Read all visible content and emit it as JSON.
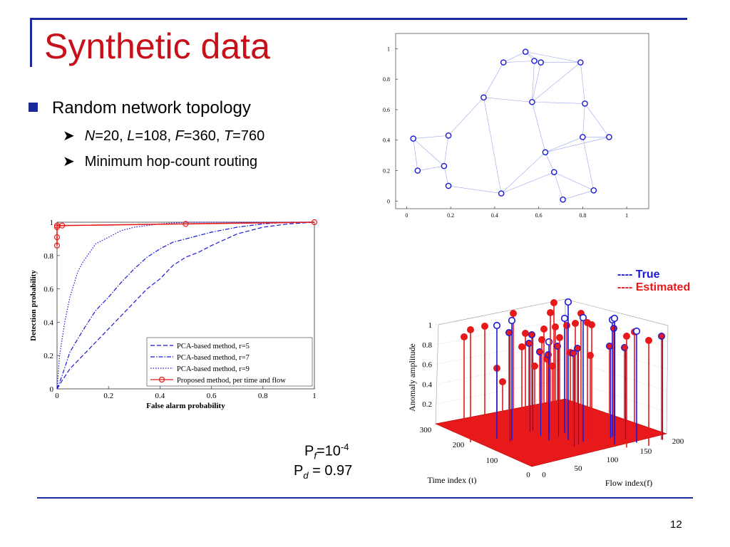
{
  "slide": {
    "title": "Synthetic data",
    "bullet_main": "Random network topology",
    "sub1": {
      "N_sym": "N",
      "N_val": "=20, ",
      "L_sym": "L",
      "L_val": "=108, ",
      "F_sym": "F",
      "F_val": "=360, ",
      "T_sym": "T",
      "T_val": "=760"
    },
    "sub2": "Minimum hop-count routing",
    "pf": {
      "base": "P",
      "sub": "f",
      "eq": "=10",
      "sup": "-4"
    },
    "pd": {
      "base": "P",
      "sub": "d",
      "eq": " = 0.97"
    },
    "page_number": "12",
    "legend3d": {
      "true_label": "---- True",
      "est_label": "----  Estimated"
    },
    "colors": {
      "title": "#c8101a",
      "bullet": "#1a2a9c",
      "rule": "#1a2a9c",
      "true": "#1a1ad6",
      "estimated": "#e8191a"
    }
  },
  "chart_data": [
    {
      "type": "scatter",
      "title": "",
      "xlabel": "",
      "ylabel": "",
      "xlim": [
        -0.05,
        1.1
      ],
      "ylim": [
        -0.05,
        1.1
      ],
      "xticks": [
        "0",
        "0.2",
        "0.4",
        "0.6",
        "0.8",
        "1"
      ],
      "yticks": [
        "0",
        "0.2",
        "0.4",
        "0.6",
        "0.8",
        "1"
      ],
      "nodes": [
        [
          0.03,
          0.41
        ],
        [
          0.05,
          0.2
        ],
        [
          0.19,
          0.43
        ],
        [
          0.17,
          0.23
        ],
        [
          0.19,
          0.1
        ],
        [
          0.35,
          0.68
        ],
        [
          0.43,
          0.05
        ],
        [
          0.44,
          0.91
        ],
        [
          0.54,
          0.98
        ],
        [
          0.58,
          0.92
        ],
        [
          0.61,
          0.91
        ],
        [
          0.57,
          0.65
        ],
        [
          0.63,
          0.32
        ],
        [
          0.67,
          0.19
        ],
        [
          0.71,
          0.01
        ],
        [
          0.79,
          0.91
        ],
        [
          0.8,
          0.42
        ],
        [
          0.81,
          0.64
        ],
        [
          0.85,
          0.07
        ],
        [
          0.92,
          0.42
        ]
      ],
      "edges": [
        [
          0,
          1
        ],
        [
          0,
          2
        ],
        [
          0,
          3
        ],
        [
          1,
          3
        ],
        [
          2,
          3
        ],
        [
          3,
          4
        ],
        [
          2,
          5
        ],
        [
          5,
          7
        ],
        [
          5,
          11
        ],
        [
          5,
          6
        ],
        [
          7,
          8
        ],
        [
          7,
          9
        ],
        [
          8,
          9
        ],
        [
          8,
          10
        ],
        [
          9,
          10
        ],
        [
          9,
          11
        ],
        [
          10,
          11
        ],
        [
          8,
          15
        ],
        [
          10,
          15
        ],
        [
          15,
          11
        ],
        [
          11,
          17
        ],
        [
          15,
          17
        ],
        [
          17,
          16
        ],
        [
          17,
          19
        ],
        [
          16,
          19
        ],
        [
          11,
          12
        ],
        [
          12,
          13
        ],
        [
          12,
          16
        ],
        [
          13,
          14
        ],
        [
          13,
          18
        ],
        [
          16,
          18
        ],
        [
          14,
          18
        ],
        [
          6,
          13
        ],
        [
          4,
          6
        ],
        [
          12,
          19
        ],
        [
          6,
          12
        ]
      ]
    },
    {
      "type": "line",
      "title": "",
      "xlabel": "False alarm probability",
      "ylabel": "Detection probability",
      "xlim": [
        0,
        1
      ],
      "ylim": [
        0,
        1
      ],
      "xticks": [
        "0",
        "0.2",
        "0.4",
        "0.6",
        "0.8",
        "1"
      ],
      "yticks": [
        "0",
        "0.2",
        "0.4",
        "0.6",
        "0.8",
        "1"
      ],
      "legend_position": "bottom-right",
      "series": [
        {
          "name": "PCA-based method, r=5",
          "style": "dashed",
          "color": "#1a1ad6",
          "x": [
            0,
            0.02,
            0.05,
            0.1,
            0.15,
            0.2,
            0.25,
            0.3,
            0.35,
            0.4,
            0.45,
            0.5,
            0.55,
            0.6,
            0.7,
            0.8,
            0.9,
            1
          ],
          "y": [
            0,
            0.05,
            0.12,
            0.2,
            0.28,
            0.36,
            0.44,
            0.52,
            0.6,
            0.66,
            0.74,
            0.79,
            0.82,
            0.86,
            0.93,
            0.97,
            0.99,
            1
          ]
        },
        {
          "name": "PCA-based method, r=7",
          "style": "dashdot",
          "color": "#1a1ad6",
          "x": [
            0,
            0.02,
            0.05,
            0.1,
            0.15,
            0.2,
            0.25,
            0.3,
            0.35,
            0.4,
            0.45,
            0.5,
            0.6,
            0.7,
            0.8,
            0.9,
            1
          ],
          "y": [
            0,
            0.08,
            0.22,
            0.35,
            0.47,
            0.55,
            0.64,
            0.72,
            0.79,
            0.84,
            0.88,
            0.9,
            0.94,
            0.97,
            0.99,
            1,
            1
          ]
        },
        {
          "name": "PCA-based method, r=9",
          "style": "dotted",
          "color": "#1a1ad6",
          "x": [
            0,
            0.01,
            0.03,
            0.05,
            0.08,
            0.1,
            0.15,
            0.2,
            0.25,
            0.3,
            0.35,
            0.4,
            0.5,
            0.6,
            0.8,
            1
          ],
          "y": [
            0,
            0.2,
            0.4,
            0.55,
            0.7,
            0.76,
            0.87,
            0.91,
            0.95,
            0.97,
            0.98,
            0.99,
            1,
            1,
            1,
            1
          ]
        },
        {
          "name": "Proposed method, per time and flow",
          "style": "solid-marker",
          "color": "#e8191a",
          "x": [
            0,
            0,
            0,
            0,
            0.02,
            0.5,
            1
          ],
          "y": [
            0.86,
            0.91,
            0.97,
            0.98,
            0.98,
            0.99,
            1
          ]
        }
      ]
    },
    {
      "type": "stem3d",
      "title": "",
      "xlabel": "Time index (t)",
      "ylabel": "Flow index(f)",
      "zlabel": "Anomaly amplitude",
      "xticks": [
        "0",
        "100",
        "200",
        "300"
      ],
      "yticks": [
        "0",
        "50",
        "100",
        "150",
        "200"
      ],
      "zticks": [
        "0.2",
        "0.4",
        "0.6",
        "0.8",
        "1"
      ],
      "zlim": [
        0,
        1
      ],
      "series": [
        {
          "name": "True",
          "color": "#1a1ad6"
        },
        {
          "name": "Estimated",
          "color": "#e8191a"
        }
      ],
      "stems": [
        [
          651,
          473,
          "est"
        ],
        [
          660,
          463,
          "est"
        ],
        [
          680,
          458,
          "est"
        ],
        [
          697,
          517,
          "est"
        ],
        [
          697,
          457,
          "true"
        ],
        [
          705,
          536,
          "est"
        ],
        [
          720,
          440,
          "est"
        ],
        [
          718,
          450,
          "true"
        ],
        [
          714,
          467,
          "both"
        ],
        [
          732,
          487,
          "est"
        ],
        [
          737,
          468,
          "est"
        ],
        [
          742,
          482,
          "both"
        ],
        [
          746,
          470,
          "both"
        ],
        [
          750,
          514,
          "est"
        ],
        [
          757,
          494,
          "both"
        ],
        [
          760,
          477,
          "est"
        ],
        [
          763,
          462,
          "est"
        ],
        [
          767,
          504,
          "est"
        ],
        [
          769,
          498,
          "both"
        ],
        [
          770,
          480,
          "true"
        ],
        [
          772,
          439,
          "est"
        ],
        [
          775,
          514,
          "est"
        ],
        [
          777,
          425,
          "est"
        ],
        [
          779,
          459,
          "est"
        ],
        [
          782,
          486,
          "both"
        ],
        [
          785,
          474,
          "est"
        ],
        [
          792,
          447,
          "true"
        ],
        [
          795,
          457,
          "est"
        ],
        [
          797,
          424,
          "true"
        ],
        [
          800,
          495,
          "est"
        ],
        [
          804,
          496,
          "both"
        ],
        [
          807,
          454,
          "est"
        ],
        [
          810,
          489,
          "both"
        ],
        [
          815,
          440,
          "est"
        ],
        [
          818,
          446,
          "true"
        ],
        [
          824,
          453,
          "est"
        ],
        [
          828,
          499,
          "est"
        ],
        [
          830,
          456,
          "est"
        ],
        [
          855,
          486,
          "both"
        ],
        [
          859,
          449,
          "true"
        ],
        [
          861,
          461,
          "both"
        ],
        [
          862,
          447,
          "true"
        ],
        [
          876,
          488,
          "both"
        ],
        [
          879,
          472,
          "est"
        ],
        [
          890,
          466,
          "est"
        ],
        [
          893,
          465,
          "true"
        ],
        [
          910,
          478,
          "est"
        ],
        [
          928,
          472,
          "both"
        ]
      ]
    }
  ]
}
